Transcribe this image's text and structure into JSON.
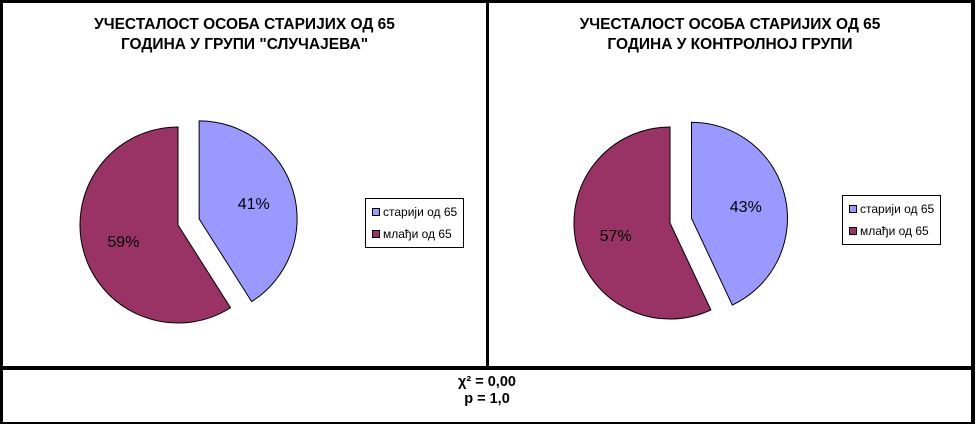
{
  "colors": {
    "older": "#9999FF",
    "younger": "#993366"
  },
  "chart_data": [
    {
      "type": "pie",
      "title_line1": "УЧЕСТАЛОСТ ОСОБА СТАРИЈИХ ОД 65",
      "title_line2": "ГОДИНА У ГРУПИ \"СЛУЧАЈЕВА\"",
      "slices": [
        {
          "label": "старији од  65",
          "value": 41,
          "display": "41%",
          "color": "#9999FF"
        },
        {
          "label": "млађи од 65",
          "value": 59,
          "display": "59%",
          "color": "#993366"
        }
      ],
      "legend_position": "right"
    },
    {
      "type": "pie",
      "title_line1": "УЧЕСТАЛОСТ ОСОБА СТАРИЈИХ ОД 65",
      "title_line2": "ГОДИНА У КОНТРОЛНОЈ ГРУПИ",
      "slices": [
        {
          "label": "старији од  65",
          "value": 43,
          "display": "43%",
          "color": "#9999FF"
        },
        {
          "label": "млађи од 65",
          "value": 57,
          "display": "57%",
          "color": "#993366"
        }
      ],
      "legend_position": "right"
    }
  ],
  "footer": {
    "chi_square": "χ² = 0,00",
    "p_value": "p = 1,0"
  }
}
